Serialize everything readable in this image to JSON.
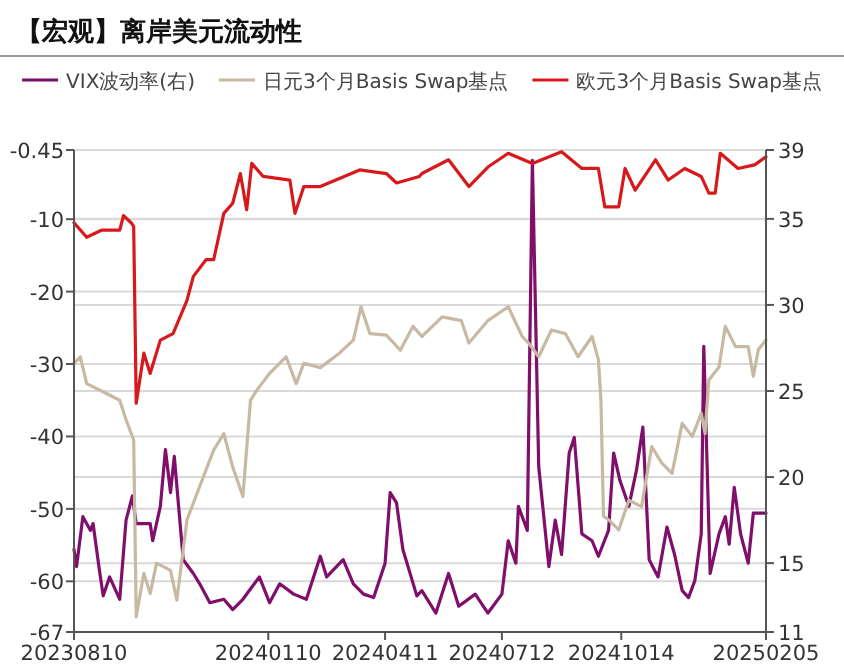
{
  "chart_data": {
    "type": "line",
    "title": "【宏观】离岸美元流动性",
    "legend": "top",
    "grid": "y",
    "xlim": [
      "2023-08-10",
      "2025-02-05"
    ],
    "xticks": [
      {
        "value": "2023-08-10",
        "label": "20230810"
      },
      {
        "value": "2024-01-10",
        "label": "20240110"
      },
      {
        "value": "2024-04-11",
        "label": "20240411"
      },
      {
        "value": "2024-07-12",
        "label": "20240712"
      },
      {
        "value": "2024-10-14",
        "label": "20241014"
      },
      {
        "value": "2025-02-05",
        "label": "20250205"
      }
    ],
    "ylim": [
      -67,
      -0.45
    ],
    "yticks": [
      -67,
      -60,
      -50,
      -40,
      -30,
      -20,
      -10,
      -0.45
    ],
    "y2lim": [
      11,
      39
    ],
    "y2ticks": [
      11,
      15,
      20,
      25,
      30,
      35,
      39
    ],
    "series": [
      {
        "name": "VIX波动率(右)",
        "color": "#7f0f6a",
        "axis": "y2",
        "x": [
          "2023-08-10",
          "2023-08-12",
          "2023-08-17",
          "2023-08-23",
          "2023-08-25",
          "2023-08-30",
          "2023-09-02",
          "2023-09-07",
          "2023-09-15",
          "2023-09-20",
          "2023-09-25",
          "2023-09-28",
          "2023-10-09",
          "2023-10-11",
          "2023-10-17",
          "2023-10-21",
          "2023-10-25",
          "2023-10-28",
          "2023-11-04",
          "2023-11-12",
          "2023-11-17",
          "2023-11-25",
          "2023-12-06",
          "2023-12-13",
          "2023-12-21",
          "2024-01-03",
          "2024-01-11",
          "2024-01-19",
          "2024-01-30",
          "2024-02-09",
          "2024-02-20",
          "2024-02-25",
          "2024-03-09",
          "2024-03-17",
          "2024-03-25",
          "2024-04-02",
          "2024-04-11",
          "2024-04-15",
          "2024-04-20",
          "2024-04-25",
          "2024-05-06",
          "2024-05-10",
          "2024-05-21",
          "2024-05-31",
          "2024-06-08",
          "2024-06-21",
          "2024-07-01",
          "2024-07-12",
          "2024-07-17",
          "2024-07-23",
          "2024-07-25",
          "2024-08-01",
          "2024-08-05",
          "2024-08-10",
          "2024-08-18",
          "2024-08-23",
          "2024-08-28",
          "2024-09-03",
          "2024-09-07",
          "2024-09-13",
          "2024-09-21",
          "2024-09-26",
          "2024-10-04",
          "2024-10-08",
          "2024-10-13",
          "2024-10-20",
          "2024-10-26",
          "2024-10-31",
          "2024-11-05",
          "2024-11-12",
          "2024-11-19",
          "2024-11-25",
          "2024-12-01",
          "2024-12-06",
          "2024-12-11",
          "2024-12-16",
          "2024-12-18",
          "2024-12-23",
          "2024-12-30",
          "2025-01-04",
          "2025-01-07",
          "2025-01-11",
          "2025-01-16",
          "2025-01-22",
          "2025-01-26",
          "2025-02-05"
        ],
        "values": [
          15.8,
          14.8,
          17.7,
          16.9,
          17.3,
          14.6,
          13.1,
          14.2,
          12.9,
          17.5,
          18.9,
          17.3,
          17.3,
          16.3,
          18.3,
          21.6,
          19.1,
          21.2,
          15.2,
          14.4,
          13.8,
          12.7,
          12.9,
          12.3,
          12.9,
          14.2,
          12.7,
          13.8,
          13.2,
          12.9,
          15.4,
          14.2,
          15.2,
          13.8,
          13.2,
          13.0,
          15.0,
          19.1,
          18.5,
          15.8,
          13.1,
          13.4,
          12.1,
          14.4,
          12.5,
          13.2,
          12.1,
          13.2,
          16.3,
          15.0,
          18.3,
          16.9,
          38.4,
          20.6,
          14.8,
          17.5,
          15.5,
          21.4,
          22.3,
          16.7,
          16.3,
          15.4,
          16.9,
          21.4,
          19.8,
          18.3,
          20.4,
          22.9,
          15.2,
          14.2,
          17.1,
          15.5,
          13.4,
          13.0,
          14.0,
          16.7,
          27.6,
          14.4,
          16.7,
          17.7,
          16.1,
          19.4,
          16.7,
          15.0,
          17.9,
          17.9
        ]
      },
      {
        "name": "日元3个月Basis Swap基点",
        "color": "#c8b9a3",
        "x": [
          "2023-08-10",
          "2023-08-15",
          "2023-08-20",
          "2023-09-05",
          "2023-09-15",
          "2023-09-20",
          "2023-09-26",
          "2023-09-28",
          "2023-10-04",
          "2023-10-09",
          "2023-10-14",
          "2023-10-25",
          "2023-10-30",
          "2023-11-07",
          "2023-11-17",
          "2023-11-28",
          "2023-12-06",
          "2023-12-13",
          "2023-12-21",
          "2023-12-27",
          "2024-01-01",
          "2024-01-11",
          "2024-01-24",
          "2024-02-01",
          "2024-02-07",
          "2024-02-20",
          "2024-03-06",
          "2024-03-17",
          "2024-03-23",
          "2024-03-30",
          "2024-04-12",
          "2024-04-23",
          "2024-05-03",
          "2024-05-10",
          "2024-05-26",
          "2024-06-10",
          "2024-06-16",
          "2024-07-01",
          "2024-07-17",
          "2024-07-28",
          "2024-08-02",
          "2024-08-10",
          "2024-08-20",
          "2024-08-31",
          "2024-09-10",
          "2024-09-21",
          "2024-09-26",
          "2024-09-28",
          "2024-09-30",
          "2024-10-04",
          "2024-10-12",
          "2024-10-20",
          "2024-10-30",
          "2024-11-07",
          "2024-11-15",
          "2024-11-23",
          "2024-12-01",
          "2024-12-09",
          "2024-12-16",
          "2024-12-19",
          "2024-12-22",
          "2024-12-30",
          "2025-01-04",
          "2025-01-12",
          "2025-01-22",
          "2025-01-26",
          "2025-01-30",
          "2025-02-05"
        ],
        "values": [
          -29.9,
          -29,
          -32.7,
          -34.1,
          -35,
          -37.7,
          -40.5,
          -64.9,
          -58.9,
          -61.7,
          -57.5,
          -58.5,
          -62.6,
          -51.5,
          -46.9,
          -41.9,
          -39.6,
          -44.2,
          -48.3,
          -35,
          -33.6,
          -31.3,
          -29,
          -32.7,
          -29.9,
          -30.5,
          -28.5,
          -26.7,
          -22.1,
          -25.8,
          -26,
          -28.1,
          -24.8,
          -26.2,
          -23.5,
          -24,
          -27.1,
          -24,
          -22.1,
          -26.2,
          -27.1,
          -29,
          -25.3,
          -25.8,
          -29,
          -26.2,
          -29.4,
          -35,
          -51,
          -51.5,
          -52.9,
          -48.8,
          -49.7,
          -41.4,
          -43.7,
          -45.1,
          -38.2,
          -40,
          -36.8,
          -39.6,
          -32.2,
          -30.4,
          -24.8,
          -27.6,
          -27.6,
          -31.7,
          -28,
          -26.7
        ]
      },
      {
        "name": "欧元3个月Basis Swap基点",
        "color": "#d7191c",
        "x": [
          "2023-08-10",
          "2023-08-20",
          "2023-09-01",
          "2023-09-15",
          "2023-09-18",
          "2023-09-24",
          "2023-09-26",
          "2023-09-28",
          "2023-10-04",
          "2023-10-09",
          "2023-10-17",
          "2023-10-27",
          "2023-11-07",
          "2023-11-12",
          "2023-11-22",
          "2023-11-28",
          "2023-12-06",
          "2023-12-13",
          "2023-12-19",
          "2023-12-24",
          "2023-12-28",
          "2024-01-06",
          "2024-01-27",
          "2024-01-31",
          "2024-02-07",
          "2024-02-20",
          "2024-03-22",
          "2024-04-12",
          "2024-04-20",
          "2024-05-08",
          "2024-05-10",
          "2024-05-31",
          "2024-06-16",
          "2024-07-01",
          "2024-07-17",
          "2024-08-05",
          "2024-08-28",
          "2024-09-13",
          "2024-09-26",
          "2024-10-01",
          "2024-10-12",
          "2024-10-17",
          "2024-10-25",
          "2024-11-10",
          "2024-11-20",
          "2024-12-03",
          "2024-12-16",
          "2024-12-22",
          "2024-12-27",
          "2024-12-31",
          "2025-01-14",
          "2025-01-27",
          "2025-02-05"
        ],
        "values": [
          -10.5,
          -12.5,
          -11.5,
          -11.5,
          -9.5,
          -10.5,
          -11,
          -35.4,
          -28.5,
          -31.3,
          -26.7,
          -25.8,
          -21.2,
          -17.9,
          -15.6,
          -15.6,
          -9.2,
          -7.8,
          -3.7,
          -8.7,
          -2.3,
          -4.1,
          -4.6,
          -9.2,
          -5.5,
          -5.5,
          -3.2,
          -3.7,
          -5.0,
          -4.1,
          -3.7,
          -1.8,
          -5.5,
          -2.8,
          -0.9,
          -2.3,
          -0.7,
          -3.0,
          -3.0,
          -8.3,
          -8.3,
          -3.0,
          -6.0,
          -1.8,
          -4.6,
          -3.0,
          -4.1,
          -6.4,
          -6.4,
          -0.9,
          -3.0,
          -2.5,
          -1.4
        ]
      }
    ]
  }
}
